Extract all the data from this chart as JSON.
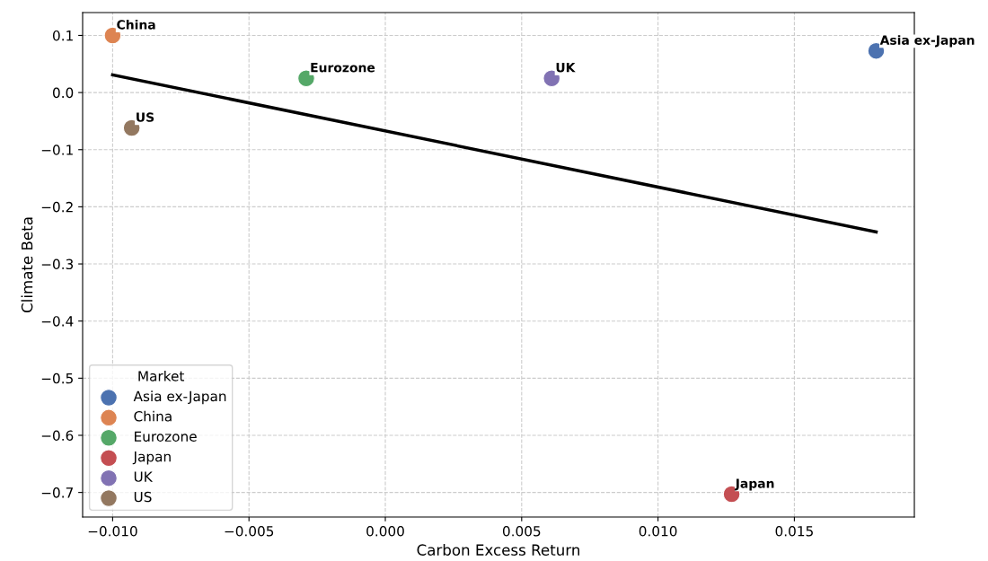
{
  "chart_data": {
    "type": "scatter",
    "xlabel": "Carbon Excess Return",
    "ylabel": "Climate Beta",
    "legend_title": "Market",
    "legend": "bottom left",
    "grid": true,
    "marker": "circle",
    "xlim": [
      -0.0111,
      0.0194
    ],
    "ylim": [
      -0.743,
      0.14
    ],
    "xticks": [
      {
        "value": -0.01,
        "label": "−0.010"
      },
      {
        "value": -0.005,
        "label": "−0.005"
      },
      {
        "value": 0,
        "label": "0.000"
      },
      {
        "value": 0.005,
        "label": "0.005"
      },
      {
        "value": 0.01,
        "label": "0.010"
      },
      {
        "value": 0.015,
        "label": "0.015"
      }
    ],
    "yticks": [
      {
        "value": -0.7,
        "label": "−0.7"
      },
      {
        "value": -0.6,
        "label": "−0.6"
      },
      {
        "value": -0.5,
        "label": "−0.5"
      },
      {
        "value": -0.4,
        "label": "−0.4"
      },
      {
        "value": -0.3,
        "label": "−0.3"
      },
      {
        "value": -0.2,
        "label": "−0.2"
      },
      {
        "value": -0.1,
        "label": "−0.1"
      },
      {
        "value": 0,
        "label": "0.0"
      },
      {
        "value": 0.1,
        "label": "0.1"
      }
    ],
    "series": [
      {
        "name": "Asia ex-Japan",
        "color": "#4c72b0",
        "x": [
          0.018
        ],
        "values": [
          0.073
        ]
      },
      {
        "name": "China",
        "color": "#dd8452",
        "x": [
          -0.01
        ],
        "values": [
          0.1
        ]
      },
      {
        "name": "Eurozone",
        "color": "#55a868",
        "x": [
          -0.0029
        ],
        "values": [
          0.025
        ]
      },
      {
        "name": "Japan",
        "color": "#c44e52",
        "x": [
          0.0127
        ],
        "values": [
          -0.703
        ]
      },
      {
        "name": "UK",
        "color": "#8172b3",
        "x": [
          0.0061
        ],
        "values": [
          0.025
        ]
      },
      {
        "name": "US",
        "color": "#937860",
        "x": [
          -0.0093
        ],
        "values": [
          -0.062
        ]
      },
      {
        "type": "line",
        "color": "#000000",
        "marker": "none",
        "line_style": "solid",
        "x": [
          -0.01,
          0.018
        ],
        "values": [
          0.031,
          -0.244
        ]
      }
    ]
  }
}
